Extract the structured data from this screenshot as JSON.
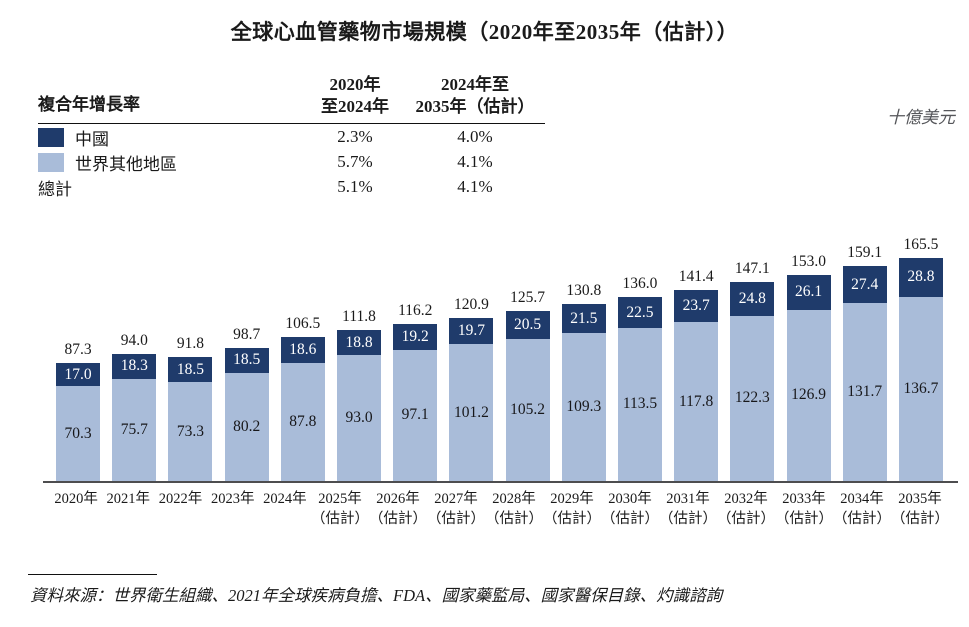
{
  "title": "全球心血管藥物市場規模（2020年至2035年（估計））",
  "unit_label": "十億美元",
  "cagr_table": {
    "row_header": "複合年增長率",
    "columns": [
      {
        "line1": "2020年",
        "line2": "至2024年"
      },
      {
        "line1": "2024年至",
        "line2": "2035年（估計）"
      }
    ],
    "rows": [
      {
        "label": "中國",
        "cagr_2020_2024": "2.3%",
        "cagr_2024_2035": "4.0%"
      },
      {
        "label": "世界其他地區",
        "cagr_2020_2024": "5.7%",
        "cagr_2024_2035": "4.1%"
      },
      {
        "label": "總計",
        "cagr_2020_2024": "5.1%",
        "cagr_2024_2035": "4.1%"
      }
    ]
  },
  "colors": {
    "china": "#1f3b6b",
    "rest_of_world": "#a9bcd9",
    "axis": "#4d4d4f"
  },
  "chart_data": {
    "type": "bar",
    "stacked": true,
    "title": "全球心血管藥物市場規模（2020年至2035年（估計））",
    "ylabel": "十億美元",
    "ylim": [
      0,
      170
    ],
    "grid": false,
    "legend_position": "top-left",
    "categories": [
      {
        "label": "2020年",
        "note": ""
      },
      {
        "label": "2021年",
        "note": ""
      },
      {
        "label": "2022年",
        "note": ""
      },
      {
        "label": "2023年",
        "note": ""
      },
      {
        "label": "2024年",
        "note": ""
      },
      {
        "label": "2025年",
        "note": "（估計）"
      },
      {
        "label": "2026年",
        "note": "（估計）"
      },
      {
        "label": "2027年",
        "note": "（估計）"
      },
      {
        "label": "2028年",
        "note": "（估計）"
      },
      {
        "label": "2029年",
        "note": "（估計）"
      },
      {
        "label": "2030年",
        "note": "（估計）"
      },
      {
        "label": "2031年",
        "note": "（估計）"
      },
      {
        "label": "2032年",
        "note": "（估計）"
      },
      {
        "label": "2033年",
        "note": "（估計）"
      },
      {
        "label": "2034年",
        "note": "（估計）"
      },
      {
        "label": "2035年",
        "note": "（估計）"
      }
    ],
    "series": [
      {
        "name": "中國",
        "color": "#1f3b6b",
        "values": [
          17.0,
          18.3,
          18.5,
          18.5,
          18.6,
          18.8,
          19.2,
          19.7,
          20.5,
          21.5,
          22.5,
          23.7,
          24.8,
          26.1,
          27.4,
          28.8
        ]
      },
      {
        "name": "世界其他地區",
        "color": "#a9bcd9",
        "values": [
          70.3,
          75.7,
          73.3,
          80.2,
          87.8,
          93.0,
          97.1,
          101.2,
          105.2,
          109.3,
          113.5,
          117.8,
          122.3,
          126.9,
          131.7,
          136.7
        ]
      }
    ],
    "totals": [
      87.3,
      94.0,
      91.8,
      98.7,
      106.5,
      111.8,
      116.2,
      120.9,
      125.7,
      130.8,
      136.0,
      141.4,
      147.1,
      153.0,
      159.1,
      165.5
    ]
  },
  "source": "資料來源：世界衛生組織、2021年全球疾病負擔、FDA、國家藥監局、國家醫保目錄、灼識諮詢"
}
